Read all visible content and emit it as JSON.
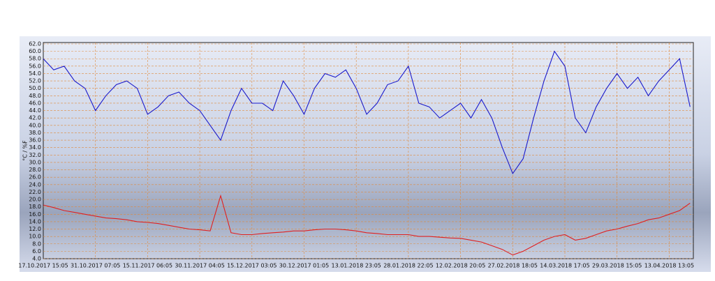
{
  "chart_data": {
    "type": "line",
    "y_label": "°C / %F",
    "categories": [
      "17.10.2017 15:05",
      null,
      null,
      null,
      null,
      "31.10.2017 07:05",
      null,
      null,
      null,
      null,
      "15.11.2017 06:05",
      null,
      null,
      null,
      null,
      "30.11.2017 04:05",
      null,
      null,
      null,
      null,
      "15.12.2017 03:05",
      null,
      null,
      null,
      null,
      "30.12.2017 01:05",
      null,
      null,
      null,
      null,
      "13.01.2018 23:05",
      null,
      null,
      null,
      null,
      "28.01.2018 22:05",
      null,
      null,
      null,
      null,
      "12.02.2018 20:05",
      null,
      null,
      null,
      null,
      "27.02.2018 18:05",
      null,
      null,
      null,
      null,
      "14.03.2018 17:05",
      null,
      null,
      null,
      null,
      "29.03.2018 15:05",
      null,
      null,
      null,
      null,
      "13.04.2018 13:05",
      null,
      null
    ],
    "series": [
      {
        "color": "#1a1acc",
        "values": [
          58,
          55,
          56,
          52,
          50,
          44,
          48,
          51,
          52,
          50,
          43,
          45,
          48,
          49,
          46,
          44,
          40,
          36,
          44,
          50,
          46,
          46,
          44,
          52,
          48,
          43,
          50,
          54,
          53,
          55,
          50,
          43,
          46,
          51,
          52,
          56,
          46,
          45,
          42,
          44,
          46,
          42,
          47,
          42,
          34,
          27,
          31,
          42,
          52,
          60,
          56,
          42,
          38,
          45,
          50,
          54,
          50,
          53,
          48,
          52,
          55,
          58,
          45
        ]
      },
      {
        "color": "#e02020",
        "values": [
          18.5,
          17.8,
          17,
          16.5,
          16,
          15.5,
          15,
          14.8,
          14.5,
          14,
          13.8,
          13.5,
          13,
          12.5,
          12,
          11.8,
          11.5,
          21,
          11,
          10.5,
          10.5,
          10.8,
          11,
          11.2,
          11.5,
          11.5,
          11.8,
          12,
          12,
          11.8,
          11.5,
          11,
          10.8,
          10.5,
          10.5,
          10.5,
          10,
          10,
          9.8,
          9.6,
          9.5,
          9,
          8.5,
          7.5,
          6.5,
          5,
          6,
          7.5,
          9,
          10,
          10.5,
          9,
          9.5,
          10.5,
          11.5,
          12,
          12.8,
          13.5,
          14.5,
          15,
          16,
          17,
          19
        ]
      }
    ],
    "ylim": [
      4,
      62
    ],
    "yticks": [
      {
        "value": 4,
        "label": "4.0"
      },
      {
        "value": 6,
        "label": "6.0"
      },
      {
        "value": 8,
        "label": "8.0"
      },
      {
        "value": 10,
        "label": "10.0"
      },
      {
        "value": 12,
        "label": "12.0"
      },
      {
        "value": 14,
        "label": "14.0"
      },
      {
        "value": 16,
        "label": "16.0"
      },
      {
        "value": 18,
        "label": "18.0"
      },
      {
        "value": 20,
        "label": "20.0"
      },
      {
        "value": 22,
        "label": "22.0"
      },
      {
        "value": 24,
        "label": "24.0"
      },
      {
        "value": 26,
        "label": "26.0"
      },
      {
        "value": 28,
        "label": "28.0"
      },
      {
        "value": 30,
        "label": "30.0"
      },
      {
        "value": 32,
        "label": "32.0"
      },
      {
        "value": 34,
        "label": "34.0"
      },
      {
        "value": 36,
        "label": "36.0"
      },
      {
        "value": 38,
        "label": "38.0"
      },
      {
        "value": 40,
        "label": "40.0"
      },
      {
        "value": 42,
        "label": "42.0"
      },
      {
        "value": 44,
        "label": "44.0"
      },
      {
        "value": 46,
        "label": "46.0"
      },
      {
        "value": 48,
        "label": "48.0"
      },
      {
        "value": 50,
        "label": "50.0"
      },
      {
        "value": 52,
        "label": "52.0"
      },
      {
        "value": 54,
        "label": "54.0"
      },
      {
        "value": 56,
        "label": "56.0"
      },
      {
        "value": 58,
        "label": "58.0"
      },
      {
        "value": 60,
        "label": "60.0"
      },
      {
        "value": 62,
        "label": "62.0"
      }
    ],
    "grid": true
  }
}
